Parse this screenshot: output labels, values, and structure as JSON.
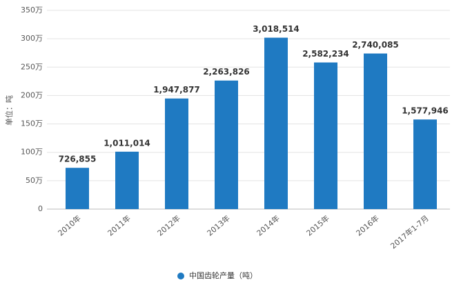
{
  "chart_data": {
    "type": "bar",
    "y_label": "单位：吨",
    "categories": [
      "2010年",
      "2011年",
      "2012年",
      "2013年",
      "2014年",
      "2015年",
      "2016年",
      "2017年1-7月"
    ],
    "series": [
      {
        "name": "中国齿轮产量（吨）",
        "color": "#1f7ac2",
        "values": [
          726855,
          1011014,
          1947877,
          2263826,
          3018514,
          2582234,
          2740085,
          1577946
        ],
        "value_labels": [
          "726,855",
          "1,011,014",
          "1,947,877",
          "2,263,826",
          "3,018,514",
          "2,582,234",
          "2,740,085",
          "1,577,946"
        ]
      }
    ],
    "ylim": [
      0,
      3500000
    ],
    "yticks": [
      0,
      {
        "value": 500000,
        "label": "50万"
      },
      {
        "value": 1000000,
        "label": "100万"
      },
      {
        "value": 1500000,
        "label": "150万"
      },
      {
        "value": 2000000,
        "label": "200万"
      },
      {
        "value": 2500000,
        "label": "250万"
      },
      {
        "value": 3000000,
        "label": "300万"
      },
      {
        "value": 3500000,
        "label": "350万"
      }
    ],
    "grid": true,
    "legend": "bottom"
  }
}
